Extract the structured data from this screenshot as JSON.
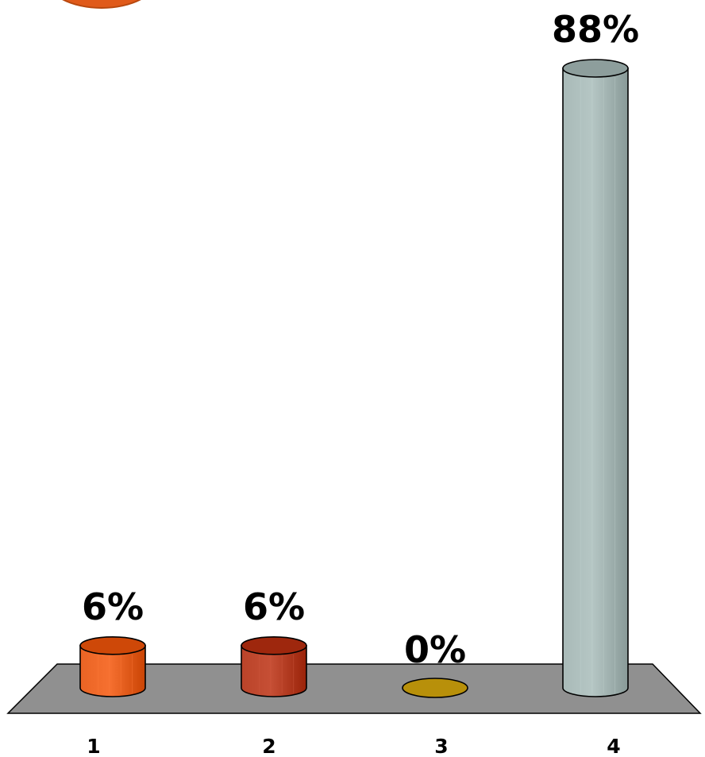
{
  "chart_data": {
    "type": "bar",
    "style": "3d-cylinder",
    "categories": [
      "1",
      "2",
      "3",
      "4"
    ],
    "values": [
      6,
      6,
      0,
      88
    ],
    "data_labels": [
      "6%",
      "6%",
      "0%",
      "88%"
    ],
    "value_unit": "%",
    "ylim": [
      0,
      100
    ],
    "title": "",
    "xlabel": "",
    "ylabel": "",
    "grid": false,
    "legend": "none",
    "colors": [
      "#e05a1a",
      "#b0391f",
      "#b8900a",
      "#9fb0ae"
    ],
    "floor_color": "#909090"
  }
}
